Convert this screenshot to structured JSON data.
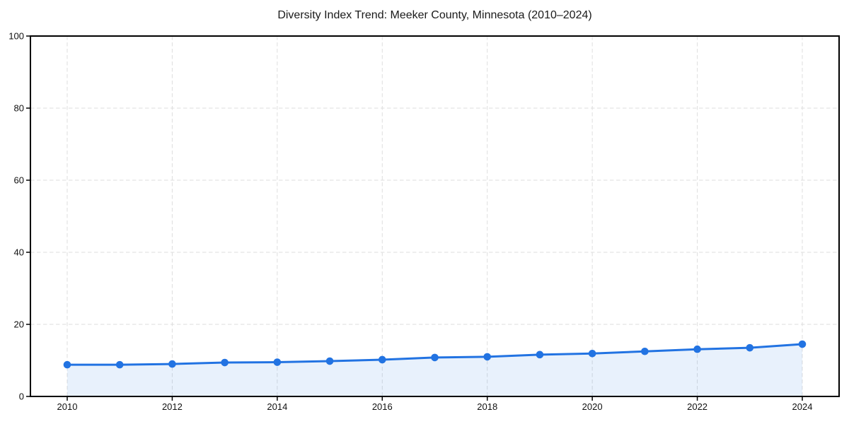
{
  "page": {
    "background_color": "#ffffff"
  },
  "chart_data": {
    "type": "area",
    "title": "Diversity Index Trend: Meeker County, Minnesota (2010–2024)",
    "xlabel": "",
    "ylabel": "",
    "x": [
      2010,
      2011,
      2012,
      2013,
      2014,
      2015,
      2016,
      2017,
      2018,
      2019,
      2020,
      2021,
      2022,
      2023,
      2024
    ],
    "values": [
      8.8,
      8.8,
      9.0,
      9.4,
      9.5,
      9.8,
      10.2,
      10.8,
      11.0,
      11.6,
      11.9,
      12.5,
      13.1,
      13.5,
      14.5
    ],
    "xticks": [
      2010,
      2012,
      2014,
      2016,
      2018,
      2020,
      2022,
      2024
    ],
    "yticks": [
      0,
      20,
      40,
      60,
      80,
      100
    ],
    "xlim": [
      2009.3,
      2024.7
    ],
    "ylim": [
      0,
      100
    ],
    "grid": true,
    "grid_style": "dashed",
    "legend": false,
    "marker": "circle",
    "colors": {
      "line": "#2273e2",
      "marker": "#2273e2",
      "fill": "rgba(34, 115, 226, 0.10)",
      "grid": "#dedede",
      "axis": "#000000",
      "text": "#111111",
      "title": "#1a1a1a",
      "background": "#ffffff"
    }
  }
}
